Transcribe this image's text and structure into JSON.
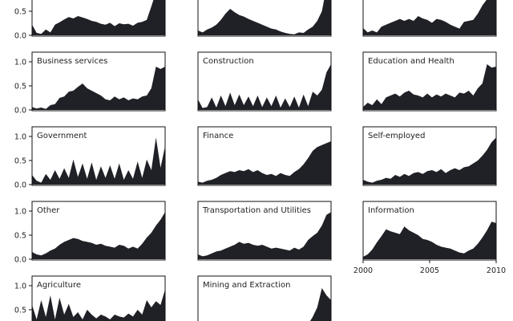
{
  "chart_data": {
    "type": "area",
    "description_kind": "small multiples",
    "x_ticks": [
      "2000",
      "2005",
      "2010"
    ],
    "x_range": [
      2000,
      2010
    ],
    "y_ticks": [
      "0.0",
      "0.5",
      "1.0"
    ],
    "y_range": [
      0,
      1
    ],
    "grid": false,
    "legend": "none",
    "fill_color": "#1f2126",
    "panels": [
      {
        "title": "",
        "row": 0,
        "col": 0,
        "values": [
          0.22,
          0.05,
          0.03,
          0.12,
          0.06,
          0.22,
          0.27,
          0.33,
          0.38,
          0.35,
          0.4,
          0.37,
          0.34,
          0.3,
          0.28,
          0.24,
          0.22,
          0.26,
          0.19,
          0.25,
          0.23,
          0.24,
          0.2,
          0.26,
          0.28,
          0.32,
          0.6,
          0.9,
          0.85,
          0.88
        ]
      },
      {
        "title": "",
        "row": 0,
        "col": 1,
        "values": [
          0.1,
          0.06,
          0.12,
          0.16,
          0.22,
          0.32,
          0.45,
          0.55,
          0.48,
          0.42,
          0.39,
          0.34,
          0.3,
          0.26,
          0.22,
          0.18,
          0.14,
          0.12,
          0.08,
          0.05,
          0.03,
          0.02,
          0.06,
          0.05,
          0.12,
          0.18,
          0.3,
          0.5,
          1.0,
          1.0
        ]
      },
      {
        "title": "",
        "row": 0,
        "col": 2,
        "values": [
          0.15,
          0.06,
          0.1,
          0.06,
          0.18,
          0.22,
          0.26,
          0.3,
          0.34,
          0.3,
          0.34,
          0.3,
          0.4,
          0.35,
          0.32,
          0.26,
          0.34,
          0.32,
          0.28,
          0.22,
          0.18,
          0.14,
          0.28,
          0.3,
          0.32,
          0.45,
          0.62,
          0.75,
          0.95,
          0.85
        ]
      },
      {
        "title": "Business services",
        "row": 1,
        "col": 0,
        "values": [
          0.06,
          0.03,
          0.05,
          0.02,
          0.1,
          0.12,
          0.25,
          0.28,
          0.38,
          0.4,
          0.48,
          0.55,
          0.45,
          0.4,
          0.35,
          0.3,
          0.22,
          0.2,
          0.28,
          0.22,
          0.26,
          0.2,
          0.24,
          0.22,
          0.28,
          0.3,
          0.45,
          0.9,
          0.85,
          0.9
        ]
      },
      {
        "title": "Construction",
        "row": 1,
        "col": 1,
        "values": [
          0.22,
          0.04,
          0.06,
          0.26,
          0.05,
          0.3,
          0.08,
          0.36,
          0.1,
          0.32,
          0.1,
          0.28,
          0.08,
          0.3,
          0.06,
          0.26,
          0.08,
          0.3,
          0.05,
          0.24,
          0.06,
          0.28,
          0.05,
          0.32,
          0.08,
          0.38,
          0.3,
          0.42,
          0.78,
          0.95
        ]
      },
      {
        "title": "Education and Health",
        "row": 1,
        "col": 2,
        "values": [
          0.06,
          0.15,
          0.1,
          0.22,
          0.12,
          0.26,
          0.3,
          0.34,
          0.28,
          0.36,
          0.4,
          0.32,
          0.3,
          0.26,
          0.34,
          0.26,
          0.32,
          0.28,
          0.34,
          0.3,
          0.26,
          0.36,
          0.34,
          0.4,
          0.3,
          0.45,
          0.55,
          0.95,
          0.88,
          0.9
        ]
      },
      {
        "title": "Government",
        "row": 2,
        "col": 0,
        "values": [
          0.2,
          0.08,
          0.04,
          0.22,
          0.1,
          0.3,
          0.12,
          0.34,
          0.14,
          0.52,
          0.16,
          0.44,
          0.12,
          0.46,
          0.1,
          0.38,
          0.14,
          0.4,
          0.12,
          0.44,
          0.1,
          0.3,
          0.12,
          0.48,
          0.14,
          0.52,
          0.3,
          0.98,
          0.35,
          0.8
        ]
      },
      {
        "title": "Finance",
        "row": 2,
        "col": 1,
        "values": [
          0.06,
          0.04,
          0.08,
          0.1,
          0.14,
          0.2,
          0.24,
          0.28,
          0.26,
          0.3,
          0.28,
          0.32,
          0.26,
          0.3,
          0.24,
          0.2,
          0.22,
          0.18,
          0.24,
          0.2,
          0.18,
          0.26,
          0.32,
          0.42,
          0.55,
          0.7,
          0.78,
          0.82,
          0.86,
          0.9
        ]
      },
      {
        "title": "Self-employed",
        "row": 2,
        "col": 2,
        "values": [
          0.1,
          0.06,
          0.04,
          0.08,
          0.1,
          0.14,
          0.12,
          0.2,
          0.16,
          0.22,
          0.18,
          0.24,
          0.26,
          0.22,
          0.28,
          0.3,
          0.26,
          0.32,
          0.24,
          0.3,
          0.34,
          0.3,
          0.36,
          0.38,
          0.44,
          0.5,
          0.6,
          0.72,
          0.88,
          0.98
        ]
      },
      {
        "title": "Other",
        "row": 3,
        "col": 0,
        "values": [
          0.15,
          0.1,
          0.08,
          0.12,
          0.18,
          0.22,
          0.3,
          0.36,
          0.4,
          0.44,
          0.42,
          0.38,
          0.36,
          0.34,
          0.3,
          0.32,
          0.28,
          0.26,
          0.24,
          0.3,
          0.28,
          0.22,
          0.26,
          0.22,
          0.32,
          0.45,
          0.55,
          0.7,
          0.82,
          0.98
        ]
      },
      {
        "title": "Transportation and Utilities",
        "row": 3,
        "col": 1,
        "values": [
          0.1,
          0.06,
          0.08,
          0.12,
          0.16,
          0.18,
          0.22,
          0.26,
          0.3,
          0.36,
          0.32,
          0.34,
          0.3,
          0.28,
          0.3,
          0.26,
          0.22,
          0.24,
          0.22,
          0.2,
          0.18,
          0.24,
          0.2,
          0.26,
          0.4,
          0.48,
          0.55,
          0.7,
          0.92,
          0.98
        ]
      },
      {
        "title": "Information",
        "row": 3,
        "col": 2,
        "values": [
          0.05,
          0.1,
          0.2,
          0.35,
          0.48,
          0.62,
          0.58,
          0.55,
          0.52,
          0.68,
          0.6,
          0.55,
          0.5,
          0.42,
          0.4,
          0.36,
          0.3,
          0.26,
          0.24,
          0.22,
          0.18,
          0.14,
          0.12,
          0.18,
          0.22,
          0.32,
          0.45,
          0.6,
          0.78,
          0.75
        ]
      },
      {
        "title": "Agriculture",
        "row": 4,
        "col": 0,
        "values": [
          0.6,
          0.3,
          0.7,
          0.35,
          0.8,
          0.3,
          0.75,
          0.4,
          0.62,
          0.35,
          0.45,
          0.3,
          0.5,
          0.4,
          0.32,
          0.4,
          0.36,
          0.3,
          0.4,
          0.36,
          0.34,
          0.42,
          0.36,
          0.5,
          0.4,
          0.7,
          0.55,
          0.68,
          0.6,
          0.92
        ]
      },
      {
        "title": "Mining and Extraction",
        "row": 4,
        "col": 1,
        "values": [
          0.2,
          0.1,
          0.06,
          0.08,
          0.04,
          0.06,
          0.1,
          0.08,
          0.04,
          0.06,
          0.08,
          0.1,
          0.06,
          0.04,
          0.06,
          0.08,
          0.04,
          0.06,
          0.1,
          0.08,
          0.06,
          0.1,
          0.08,
          0.12,
          0.2,
          0.35,
          0.55,
          0.95,
          0.8,
          0.7
        ]
      }
    ]
  }
}
